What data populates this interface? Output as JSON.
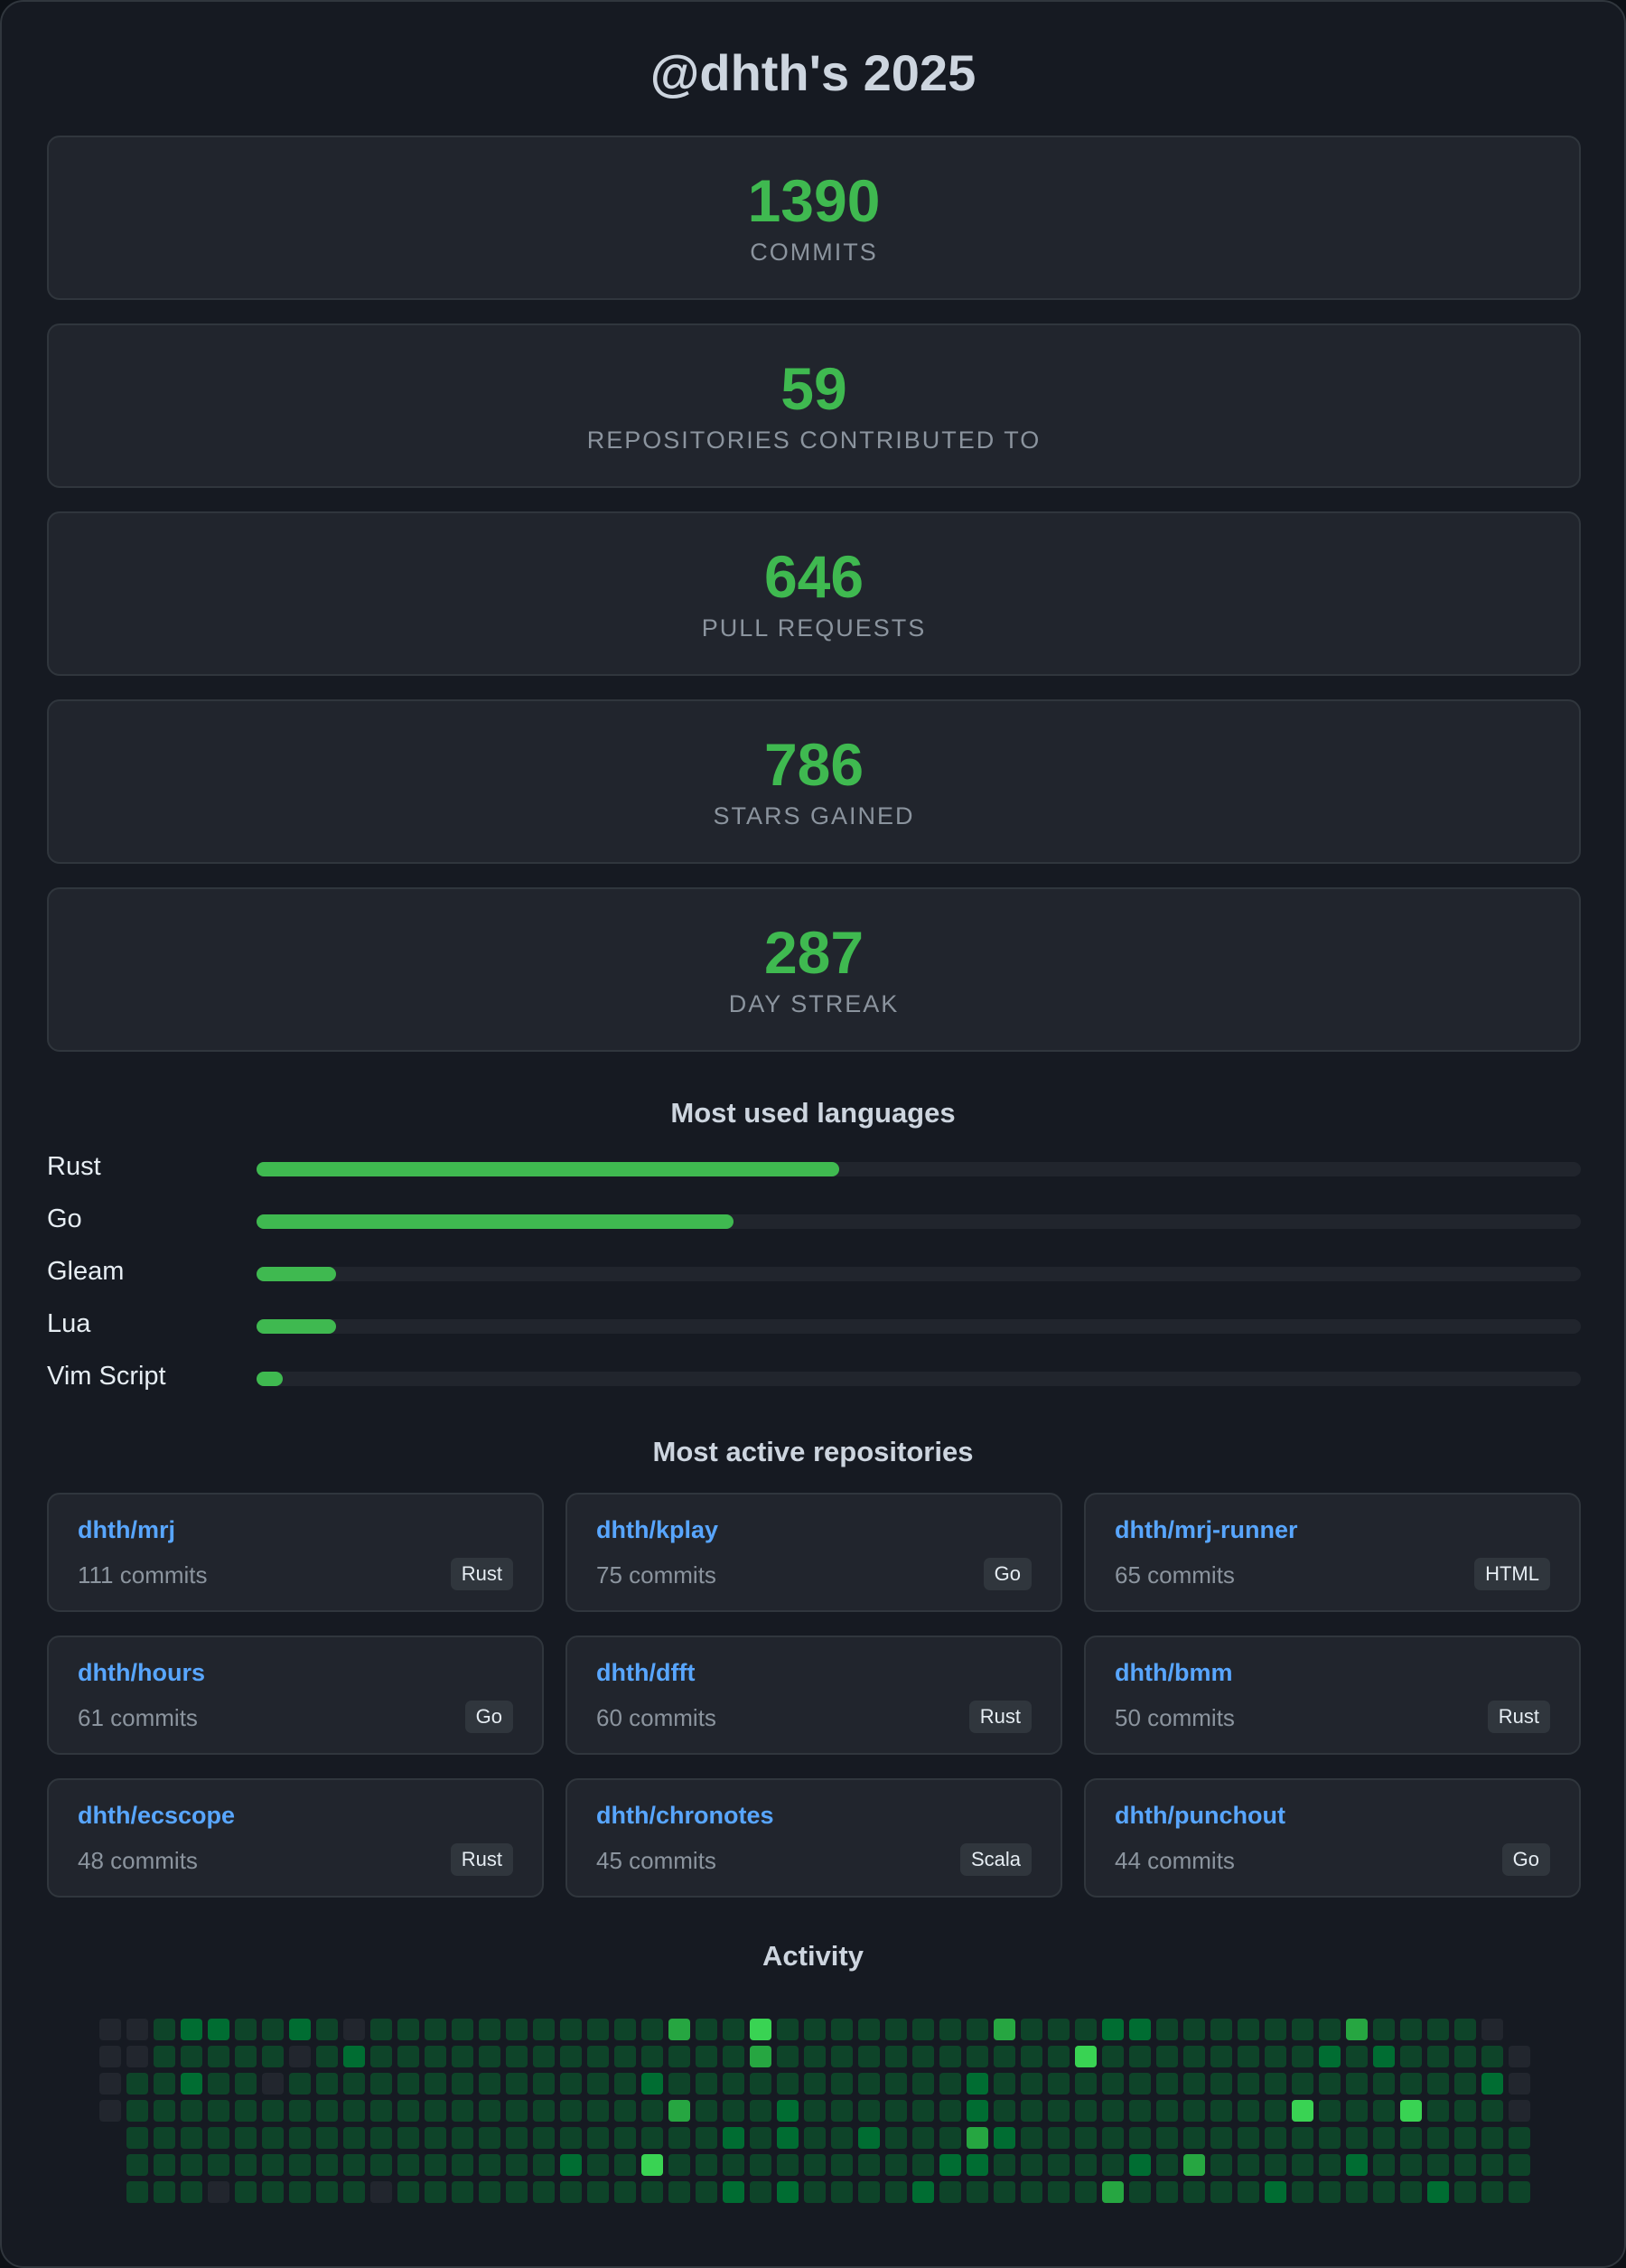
{
  "title": "@dhth's 2025",
  "stats": [
    {
      "value": "1390",
      "label": "Commits"
    },
    {
      "value": "59",
      "label": "Repositories contributed to"
    },
    {
      "value": "646",
      "label": "Pull requests"
    },
    {
      "value": "786",
      "label": "Stars gained"
    },
    {
      "value": "287",
      "label": "Day streak"
    }
  ],
  "languages": {
    "title": "Most used languages",
    "items": [
      {
        "name": "Rust",
        "fraction": 0.44
      },
      {
        "name": "Go",
        "fraction": 0.36
      },
      {
        "name": "Gleam",
        "fraction": 0.06
      },
      {
        "name": "Lua",
        "fraction": 0.06
      },
      {
        "name": "Vim Script",
        "fraction": 0.02
      }
    ]
  },
  "repositories": {
    "title": "Most active repositories",
    "items": [
      {
        "name": "dhth/mrj",
        "commits": "111 commits",
        "language": "Rust"
      },
      {
        "name": "dhth/kplay",
        "commits": "75 commits",
        "language": "Go"
      },
      {
        "name": "dhth/mrj-runner",
        "commits": "65 commits",
        "language": "HTML"
      },
      {
        "name": "dhth/hours",
        "commits": "61 commits",
        "language": "Go"
      },
      {
        "name": "dhth/dfft",
        "commits": "60 commits",
        "language": "Rust"
      },
      {
        "name": "dhth/bmm",
        "commits": "50 commits",
        "language": "Rust"
      },
      {
        "name": "dhth/ecscope",
        "commits": "48 commits",
        "language": "Rust"
      },
      {
        "name": "dhth/chronotes",
        "commits": "45 commits",
        "language": "Scala"
      },
      {
        "name": "dhth/punchout",
        "commits": "44 commits",
        "language": "Go"
      }
    ]
  },
  "activity": {
    "title": "Activity",
    "level_colors": [
      "#22262e",
      "#0e4429",
      "#006d32",
      "#26a641",
      "#39d353"
    ],
    "rows": [
      "0012211210111111111113114111111113111221111111311110",
      "00111110121111111111111131111111111141111111121211110",
      "01121101111111111111211111111111211111111111111111120",
      "01111111111111111111131112111111211111111111411141110",
      "-1111111111111111111111212112111321111111111111111111-",
      "-1111111111111111211411111111112211111213111112111111-",
      "-1110111110111111111111212111121111113111112111112111-"
    ]
  },
  "colors": {
    "accent": "#3fb950",
    "link": "#58a6ff",
    "background": "#161a22",
    "card": "#21252d"
  }
}
